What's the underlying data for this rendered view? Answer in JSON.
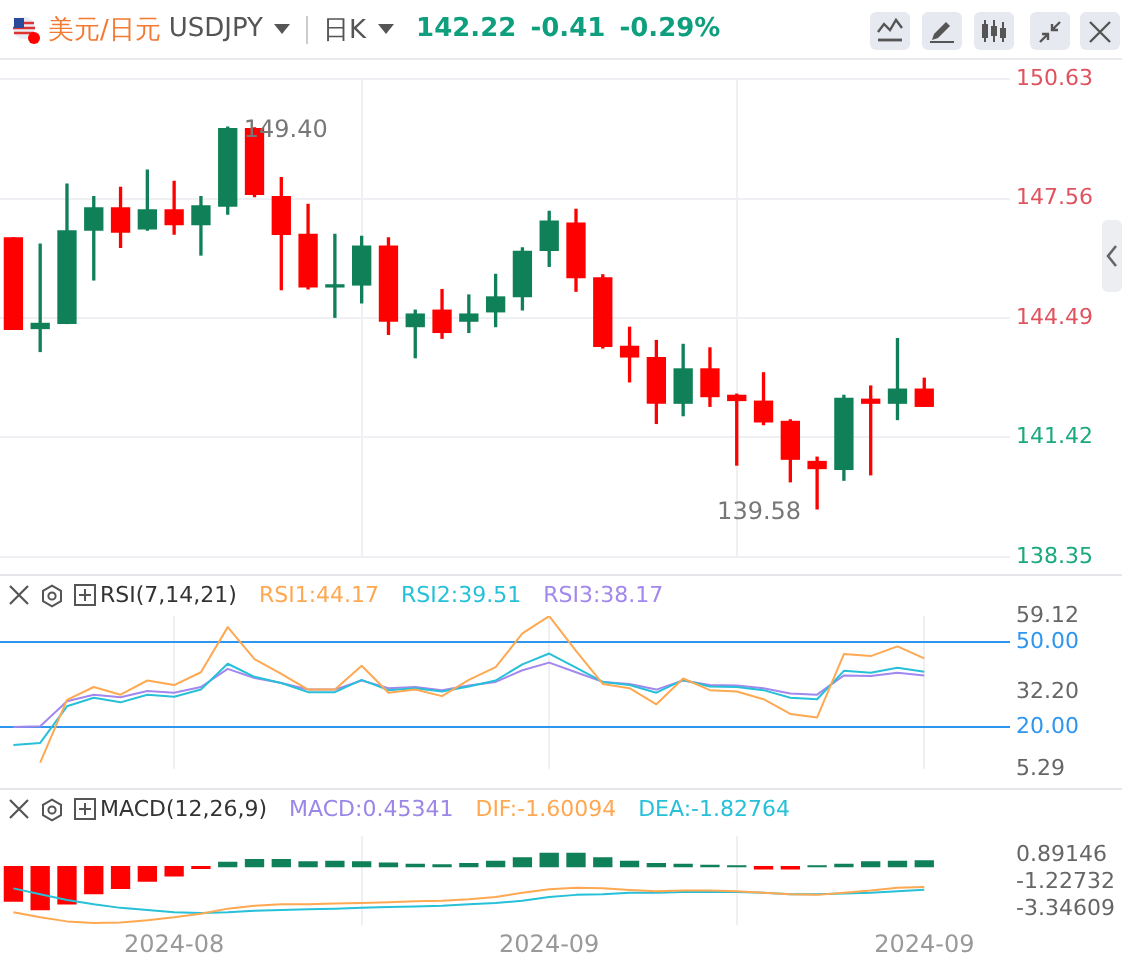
{
  "chart_data": [
    {
      "type": "candlestick",
      "title": "美元/日元",
      "subtitle": "USDJPY",
      "annotations": [
        "日K",
        "142.22",
        "-0.41",
        "-0.29%",
        "149.40",
        "139.58"
      ],
      "categories": [
        null,
        null,
        null,
        null,
        null,
        null,
        "2024-08",
        null,
        null,
        null,
        null,
        null,
        null,
        null,
        null,
        null,
        null,
        null,
        null,
        null,
        "2024-09",
        null,
        null,
        null,
        null,
        null,
        null,
        null,
        null,
        null,
        null,
        null,
        null,
        null,
        "2024-09"
      ],
      "ohlc": [
        [
          146.55,
          146.55,
          144.2,
          144.2
        ],
        [
          144.22,
          146.39,
          143.63,
          144.35
        ],
        [
          144.35,
          147.93,
          144.35,
          146.73
        ],
        [
          146.75,
          147.61,
          145.47,
          147.32
        ],
        [
          147.32,
          147.85,
          146.31,
          146.7
        ],
        [
          146.78,
          148.29,
          146.75,
          147.27
        ],
        [
          147.27,
          148.0,
          146.65,
          146.89
        ],
        [
          146.89,
          147.61,
          146.11,
          147.37
        ],
        [
          147.37,
          149.4,
          147.16,
          149.36
        ],
        [
          149.36,
          149.38,
          147.61,
          147.67
        ],
        [
          147.61,
          148.1,
          145.22,
          146.64
        ],
        [
          146.64,
          147.41,
          145.24,
          145.29
        ],
        [
          145.29,
          146.64,
          144.51,
          145.32
        ],
        [
          145.34,
          146.59,
          144.88,
          146.34
        ],
        [
          146.34,
          146.55,
          144.07,
          144.41
        ],
        [
          144.27,
          144.69,
          143.47,
          144.59
        ],
        [
          144.69,
          145.22,
          143.97,
          144.12
        ],
        [
          144.41,
          145.08,
          144.12,
          144.59
        ],
        [
          144.65,
          145.61,
          144.27,
          145.03
        ],
        [
          145.04,
          146.29,
          144.7,
          146.2
        ],
        [
          146.23,
          147.23,
          145.82,
          146.98
        ],
        [
          146.93,
          147.28,
          145.18,
          145.53
        ],
        [
          145.52,
          145.6,
          143.72,
          143.76
        ],
        [
          143.76,
          144.25,
          142.85,
          143.49
        ],
        [
          143.47,
          143.91,
          141.78,
          142.3
        ],
        [
          142.3,
          143.81,
          141.98,
          143.18
        ],
        [
          143.18,
          143.72,
          142.22,
          142.47
        ],
        [
          142.5,
          142.53,
          140.71,
          142.37
        ],
        [
          142.35,
          143.08,
          141.75,
          141.82
        ],
        [
          141.83,
          141.87,
          140.28,
          140.86
        ],
        [
          140.8,
          140.91,
          139.58,
          140.62
        ],
        [
          140.6,
          142.5,
          140.32,
          142.42
        ],
        [
          142.4,
          142.74,
          140.46,
          142.3
        ],
        [
          142.3,
          143.96,
          141.88,
          142.66
        ],
        [
          142.66,
          142.94,
          142.22,
          142.22
        ]
      ],
      "colors": [
        "#ff0000",
        "#0f8057",
        "#0f8057",
        "#0f8057",
        "#ff0000",
        "#0f8057",
        "#ff0000",
        "#0f8057",
        "#0f8057",
        "#ff0000",
        "#ff0000",
        "#ff0000",
        "#0f8057",
        "#0f8057",
        "#ff0000",
        "#0f8057",
        "#ff0000",
        "#0f8057",
        "#0f8057",
        "#0f8057",
        "#0f8057",
        "#ff0000",
        "#ff0000",
        "#ff0000",
        "#ff0000",
        "#0f8057",
        "#ff0000",
        "#ff0000",
        "#ff0000",
        "#ff0000",
        "#ff0000",
        "#0f8057",
        "#ff0000",
        "#0f8057",
        "#ff0000"
      ],
      "ylim": [
        138.35,
        150.63
      ],
      "yticks": [
        138.35,
        141.42,
        144.49,
        147.56,
        150.63
      ],
      "grid": true,
      "tick_labels": "y"
    },
    {
      "type": "line",
      "title": "RSI(7,14,21)",
      "categories": [
        null,
        null,
        null,
        null,
        null,
        null,
        "2024-08",
        null,
        null,
        null,
        null,
        null,
        null,
        null,
        null,
        null,
        null,
        null,
        null,
        null,
        "2024-09",
        null,
        null,
        null,
        null,
        null,
        null,
        null,
        null,
        null,
        null,
        null,
        null,
        null,
        "2024-09"
      ],
      "series": [
        {
          "name": "RSI1:44.17",
          "color": "#ffa852",
          "values": [
            null,
            7.5,
            29.6,
            34.1,
            31.4,
            36.4,
            34.8,
            39.3,
            55.2,
            43.9,
            38.7,
            33.2,
            33.2,
            41.6,
            32.1,
            33.2,
            30.9,
            36.6,
            41.1,
            53.0,
            59.1,
            46.8,
            35.2,
            33.7,
            28.0,
            37.1,
            33.0,
            32.5,
            29.8,
            24.6,
            23.4,
            45.7,
            45.0,
            48.4,
            44.17
          ]
        },
        {
          "name": "RSI2:39.51",
          "color": "#26c0d8",
          "values": [
            13.7,
            14.4,
            27.3,
            30.3,
            28.7,
            31.4,
            30.7,
            33.2,
            42.3,
            37.7,
            35.5,
            32.3,
            32.3,
            36.6,
            33.0,
            33.7,
            32.5,
            34.3,
            36.4,
            42.1,
            45.9,
            40.9,
            35.9,
            34.8,
            32.1,
            36.6,
            34.3,
            34.1,
            33.0,
            30.3,
            29.8,
            39.8,
            39.1,
            40.9,
            39.51
          ]
        },
        {
          "name": "RSI3:38.17",
          "color": "#a288ee",
          "values": [
            20.0,
            20.3,
            29.1,
            31.4,
            30.5,
            32.7,
            32.1,
            34.1,
            40.5,
            37.3,
            35.5,
            33.2,
            33.2,
            36.4,
            33.7,
            34.1,
            33.0,
            34.6,
            35.9,
            40.0,
            42.7,
            39.3,
            35.9,
            35.2,
            33.2,
            36.4,
            34.8,
            34.6,
            33.7,
            31.8,
            31.4,
            38.2,
            38.0,
            39.1,
            38.17
          ]
        }
      ],
      "ylim": [
        5.29,
        59.12
      ],
      "yticks": [
        5.29,
        {
          "value": 20,
          "label": "20.00"
        },
        {
          "value": 32.2,
          "label": "32.20"
        },
        {
          "value": 50,
          "label": "50.00"
        },
        59.12
      ],
      "ref_lines": [
        {
          "axis": "y",
          "value": 50,
          "color": "#2f96f0"
        },
        {
          "axis": "y",
          "value": 20,
          "color": "#2f96f0"
        }
      ],
      "grid": "x",
      "legend": "top",
      "marker": "none",
      "tick_labels": "y"
    },
    {
      "type": "bar",
      "title": "MACD(12,26,9)",
      "categories": [
        null,
        null,
        null,
        null,
        null,
        null,
        "2024-08",
        null,
        null,
        null,
        null,
        null,
        null,
        null,
        null,
        null,
        null,
        null,
        null,
        null,
        "2024-09",
        null,
        null,
        null,
        null,
        null,
        null,
        null,
        null,
        null,
        null,
        null,
        null,
        null,
        "2024-09"
      ],
      "series": [
        {
          "type": "bar",
          "name": "MACD:0.45341",
          "color": "#9b86e8",
          "values": [
            -2.7,
            -3.38,
            -2.93,
            -2.12,
            -1.71,
            -1.13,
            -0.72,
            -0.14,
            0.32,
            0.54,
            0.54,
            0.36,
            0.41,
            0.36,
            0.27,
            0.18,
            0.14,
            0.23,
            0.41,
            0.68,
            1.04,
            1.04,
            0.68,
            0.41,
            0.23,
            0.18,
            0.09,
            0.05,
            -0.18,
            -0.18,
            0.05,
            0.18,
            0.36,
            0.41,
            0.45341
          ],
          "colors": [
            "#ff0000",
            "#ff0000",
            "#ff0000",
            "#ff0000",
            "#ff0000",
            "#ff0000",
            "#ff0000",
            "#ff0000",
            "#0f8057",
            "#0f8057",
            "#0f8057",
            "#0f8057",
            "#0f8057",
            "#0f8057",
            "#0f8057",
            "#0f8057",
            "#0f8057",
            "#0f8057",
            "#0f8057",
            "#0f8057",
            "#0f8057",
            "#0f8057",
            "#0f8057",
            "#0f8057",
            "#0f8057",
            "#0f8057",
            "#0f8057",
            "#0f8057",
            "#ff0000",
            "#ff0000",
            "#0f8057",
            "#0f8057",
            "#0f8057",
            "#0f8057",
            "#0f8057"
          ]
        },
        {
          "type": "line",
          "name": "DIF:-1.60094",
          "color": "#ffa852",
          "values": [
            -3.58,
            -3.98,
            -4.3,
            -4.43,
            -4.38,
            -4.21,
            -3.98,
            -3.7,
            -3.3,
            -3.07,
            -2.96,
            -2.96,
            -2.9,
            -2.85,
            -2.79,
            -2.73,
            -2.68,
            -2.56,
            -2.39,
            -2.05,
            -1.77,
            -1.66,
            -1.71,
            -1.83,
            -1.94,
            -1.88,
            -1.88,
            -1.94,
            -2.05,
            -2.17,
            -2.22,
            -2.05,
            -1.88,
            -1.66,
            -1.60094
          ]
        },
        {
          "type": "line",
          "name": "DEA:-1.82764",
          "color": "#26c0d8",
          "values": [
            -1.71,
            -2.17,
            -2.62,
            -2.96,
            -3.24,
            -3.41,
            -3.58,
            -3.64,
            -3.58,
            -3.47,
            -3.41,
            -3.35,
            -3.3,
            -3.24,
            -3.18,
            -3.13,
            -3.07,
            -2.96,
            -2.85,
            -2.68,
            -2.39,
            -2.22,
            -2.17,
            -2.05,
            -2.05,
            -2.0,
            -2.0,
            -2.0,
            -2.05,
            -2.17,
            -2.17,
            -2.11,
            -2.05,
            -1.94,
            -1.82764
          ]
        }
      ],
      "ylim": [
        -4.6,
        2.4
      ],
      "yticks": [
        -3.34609,
        -1.22732,
        0.89146
      ],
      "grid": "x",
      "legend": "top",
      "marker": "none"
    }
  ]
}
